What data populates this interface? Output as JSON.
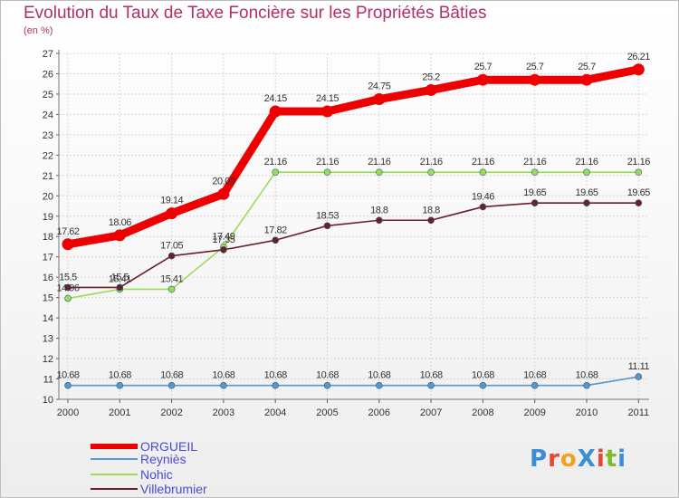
{
  "chart_data": {
    "type": "line",
    "title": "Evolution du Taux de Taxe Foncière sur les Propriétés Bâties",
    "ylabel": "(en %)",
    "xlabel": "",
    "categories": [
      "2000",
      "2001",
      "2002",
      "2003",
      "2004",
      "2005",
      "2006",
      "2007",
      "2008",
      "2009",
      "2010",
      "2011"
    ],
    "ylim": [
      10,
      27
    ],
    "yticks": [
      "10",
      "11",
      "12",
      "13",
      "14",
      "15",
      "16",
      "17",
      "18",
      "19",
      "20",
      "21",
      "22",
      "23",
      "24",
      "25",
      "26",
      "27"
    ],
    "grid": true,
    "series": [
      {
        "name": "ORGUEIL",
        "color": "#ee0000",
        "labels": [
          "17.62",
          "18.06",
          "19.14",
          "20.09",
          "24.15",
          "24.15",
          "24.75",
          "25.2",
          "25.7",
          "25.7",
          "25.7",
          "26.21"
        ],
        "values": [
          17.62,
          18.06,
          19.14,
          20.09,
          24.15,
          24.15,
          24.75,
          25.2,
          25.7,
          25.7,
          25.7,
          26.21
        ]
      },
      {
        "name": "Reyniès",
        "color": "#5a97c9",
        "labels": [
          "10.68",
          "10.68",
          "10.68",
          "10.68",
          "10.68",
          "10.68",
          "10.68",
          "10.68",
          "10.68",
          "10.68",
          "10.68",
          "11.11"
        ],
        "values": [
          10.68,
          10.68,
          10.68,
          10.68,
          10.68,
          10.68,
          10.68,
          10.68,
          10.68,
          10.68,
          10.68,
          11.11
        ]
      },
      {
        "name": "Nohic",
        "color": "#99dd55",
        "labels": [
          "14.96",
          "15.41",
          "15.41",
          "17.49",
          "21.16",
          "21.16",
          "21.16",
          "21.16",
          "21.16",
          "21.16",
          "21.16",
          "21.16"
        ],
        "values": [
          14.96,
          15.41,
          15.41,
          17.49,
          21.16,
          21.16,
          21.16,
          21.16,
          21.16,
          21.16,
          21.16,
          21.16
        ]
      },
      {
        "name": "Villebrumier",
        "color": "#6b1f28",
        "labels": [
          "15.5",
          "15.5",
          "17.05",
          "17.35",
          "17.82",
          "18.53",
          "18.8",
          "18.8",
          "19.46",
          "19.65",
          "19.65",
          "19.65"
        ],
        "values": [
          15.5,
          15.5,
          17.05,
          17.35,
          17.82,
          18.53,
          18.8,
          18.8,
          19.46,
          19.65,
          19.65,
          19.65
        ]
      }
    ]
  },
  "legend": [
    {
      "label": "ORGUEIL",
      "color": "#ee0000"
    },
    {
      "label": "Reyniès",
      "color": "#5a97c9"
    },
    {
      "label": "Nohic",
      "color": "#99dd55"
    },
    {
      "label": "Villebrumier",
      "color": "#6b1f28"
    }
  ],
  "logo": {
    "text": "ProXiti",
    "colors": [
      "#3b8ed6",
      "#e8472d",
      "#f0a31c",
      "#3b8ed6",
      "#e8472d",
      "#7fb92c",
      "#3b8ed6"
    ]
  }
}
